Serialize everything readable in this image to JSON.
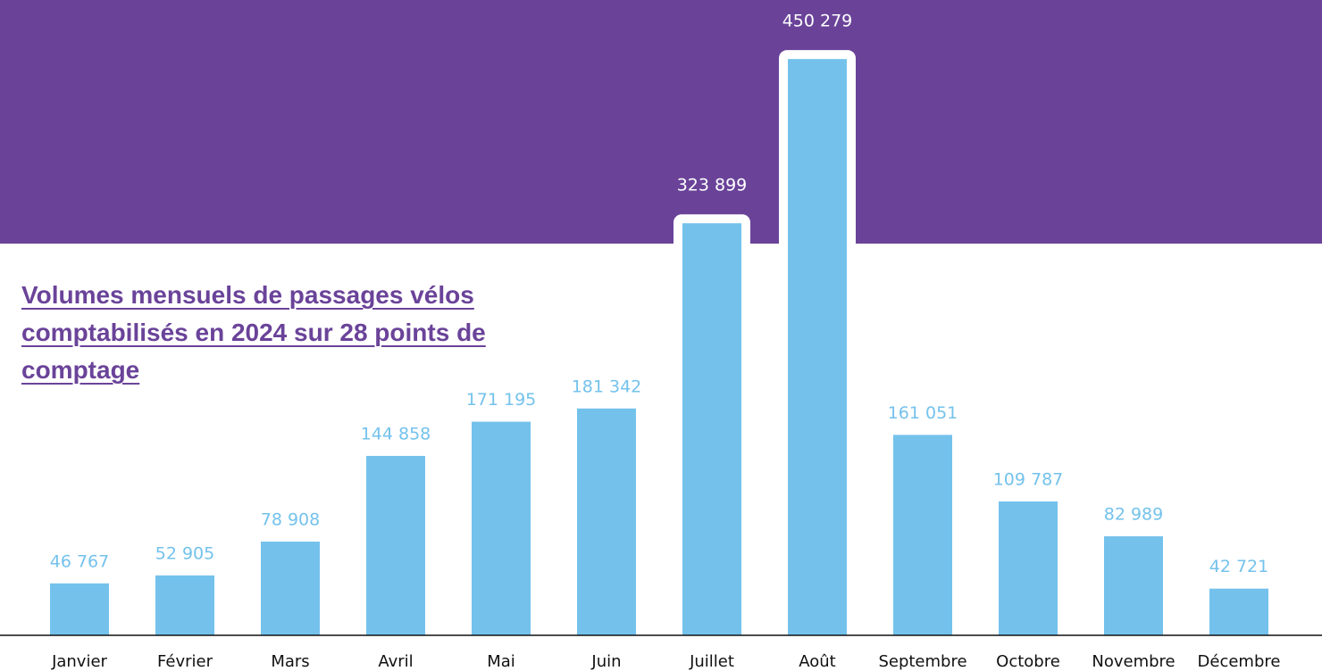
{
  "chart_data": {
    "type": "bar",
    "title": "Volumes mensuels de passages vélos comptabilisés en 2024 sur 28 points de comptage",
    "categories": [
      "Janvier",
      "Février",
      "Mars",
      "Avril",
      "Mai",
      "Juin",
      "Juillet",
      "Août",
      "Septembre",
      "Octobre",
      "Novembre",
      "Décembre"
    ],
    "values": [
      46767,
      52905,
      78908,
      144858,
      171195,
      181342,
      323899,
      450279,
      161051,
      109787,
      82989,
      42721
    ],
    "value_labels": [
      "46 767",
      "52 905",
      "78 908",
      "144 858",
      "171 195",
      "181 342",
      "323 899",
      "450 279",
      "161 051",
      "109 787",
      "82 989",
      "42 721"
    ],
    "color": "#74c2ec",
    "highlight": [
      "Juillet",
      "Août"
    ],
    "ylim": [
      6800,
      460000
    ]
  }
}
